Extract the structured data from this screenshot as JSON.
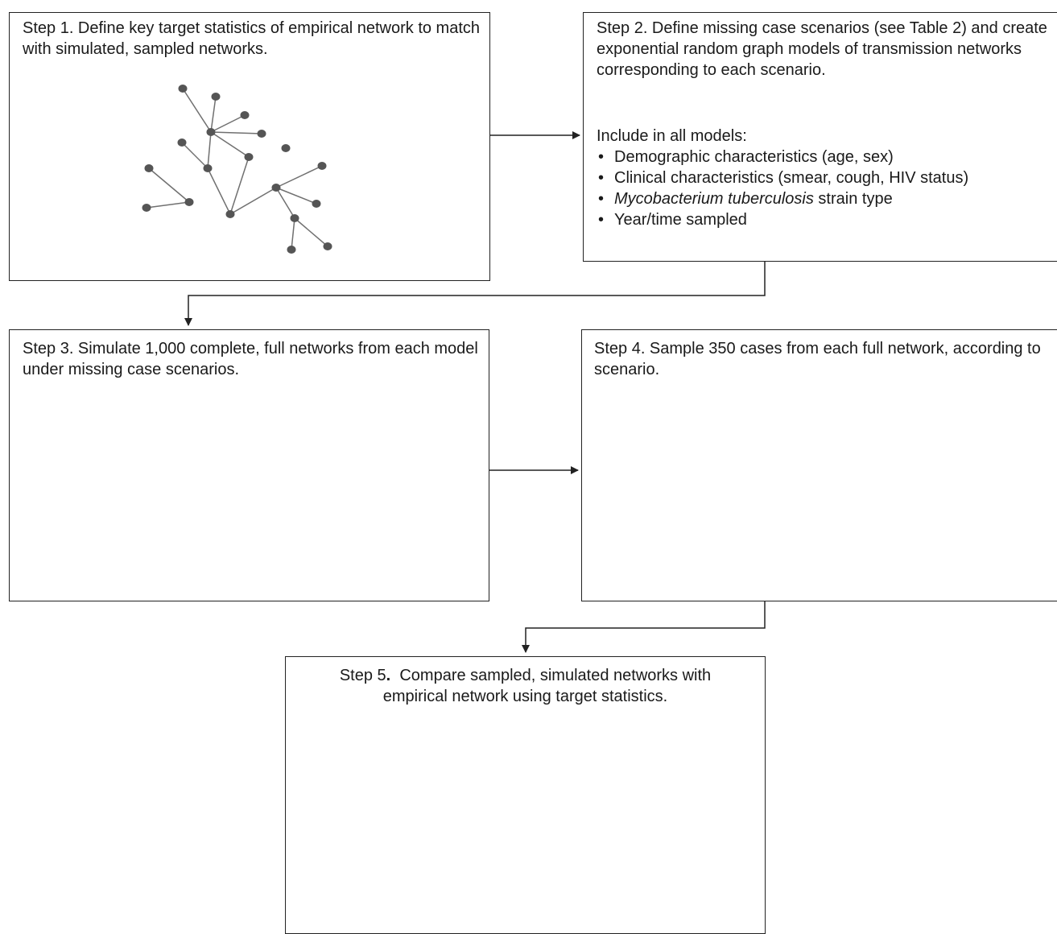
{
  "step1": {
    "text": "Step 1. Define key target statistics of empirical network to match with simulated, sampled networks."
  },
  "step2": {
    "text": "Step 2. Define missing case scenarios (see Table 2) and create exponential random graph models of transmission networks corresponding to each scenario.",
    "include_label": "Include in all models:",
    "bullets": [
      {
        "pre": "Demographic characteristics (age, sex)",
        "ital": "",
        "post": ""
      },
      {
        "pre": "Clinical characteristics (smear, cough, HIV status)",
        "ital": "",
        "post": ""
      },
      {
        "pre": "",
        "ital": "Mycobacterium tuberculosis",
        "post": " strain type"
      },
      {
        "pre": "Year/time sampled",
        "ital": "",
        "post": ""
      }
    ]
  },
  "step3": {
    "text": "Step 3. Simulate 1,000 complete, full networks from each model under missing case scenarios."
  },
  "step4": {
    "text": "Step 4.  Sample 350 cases from each full network, according to scenario."
  },
  "step5": {
    "text_a": "Step 5",
    "text_b": "Compare sampled, simulated networks with empirical network using target statistics."
  },
  "colors": {
    "dark_node": "#555555",
    "light_node": "#999999",
    "edge": "#707070",
    "border": "#222222"
  }
}
